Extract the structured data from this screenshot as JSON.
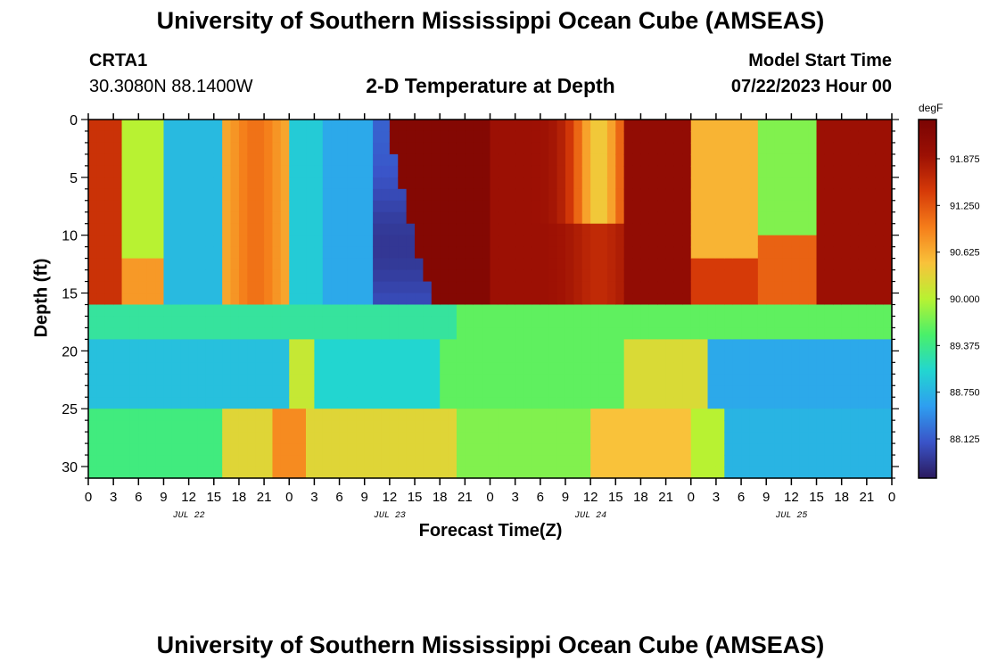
{
  "header": {
    "title": "University of Southern Mississippi Ocean Cube (AMSEAS)",
    "station": "CRTA1",
    "coords": "30.3080N  88.1400W",
    "subtitle": "2-D Temperature at Depth",
    "start_label": "Model Start Time",
    "start_value": "07/22/2023 Hour 00"
  },
  "footer": {
    "title": "University of Southern Mississippi Ocean Cube (AMSEAS)"
  },
  "chart_data": {
    "type": "heatmap",
    "xlabel": "Forecast Time(Z)",
    "ylabel": "Depth (ft)",
    "x_tick_labels": [
      "0",
      "3",
      "6",
      "9",
      "12",
      "15",
      "18",
      "21",
      "0",
      "3",
      "6",
      "9",
      "12",
      "15",
      "18",
      "21",
      "0",
      "3",
      "6",
      "9",
      "12",
      "15",
      "18",
      "21",
      "0",
      "3",
      "6",
      "9",
      "12",
      "15",
      "18",
      "21",
      "0"
    ],
    "day_labels": [
      {
        "label": "JUL 22",
        "hour": 12
      },
      {
        "label": "JUL 23",
        "hour": 36
      },
      {
        "label": "JUL 24",
        "hour": 60
      },
      {
        "label": "JUL 25",
        "hour": 84
      }
    ],
    "x_range_hours": [
      0,
      96
    ],
    "y_ticks": [
      0,
      5,
      10,
      15,
      20,
      25,
      30
    ],
    "ylim": [
      0,
      31
    ],
    "colorbar": {
      "unit": "degF",
      "ticks": [
        "91.875",
        "91.250",
        "90.625",
        "90.000",
        "89.375",
        "88.750",
        "88.125"
      ],
      "tick_values": [
        91.875,
        91.25,
        90.625,
        90.0,
        89.375,
        88.75,
        88.125
      ],
      "range": [
        87.6,
        92.4
      ]
    },
    "colors": [
      "#2b1a5e",
      "#3a54c8",
      "#2e9ef0",
      "#22d6d0",
      "#49f06a",
      "#b8f232",
      "#f9c23a",
      "#f57d1a",
      "#d63a08",
      "#9c1004",
      "#7a0403"
    ],
    "grid": false
  }
}
